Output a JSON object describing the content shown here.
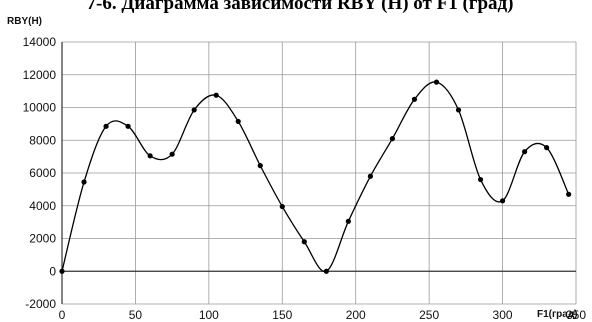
{
  "chart_data": {
    "type": "line",
    "title": "7-6. Диаграмма зависимости RBY (Н) от F1 (град)",
    "ylabel": "RBY(H)",
    "xlabel": "F1(град)",
    "xlim": [
      0,
      350
    ],
    "ylim": [
      -2000,
      14000
    ],
    "x_ticks": [
      0,
      50,
      100,
      150,
      200,
      250,
      300,
      350
    ],
    "y_ticks": [
      -2000,
      0,
      2000,
      4000,
      6000,
      8000,
      10000,
      12000,
      14000
    ],
    "grid": true,
    "legend": "none",
    "series": [
      {
        "color": "#000000",
        "marker": "circle",
        "x": [
          0,
          15,
          30,
          45,
          60,
          75,
          90,
          105,
          120,
          135,
          150,
          165,
          180,
          195,
          210,
          225,
          240,
          255,
          270,
          285,
          300,
          315,
          330,
          345
        ],
        "y": [
          0,
          5450,
          8850,
          8850,
          7050,
          7150,
          9850,
          10750,
          9150,
          6450,
          3950,
          1800,
          0,
          3050,
          5800,
          8100,
          10500,
          11550,
          9850,
          5600,
          4300,
          7300,
          7550,
          4700
        ]
      }
    ]
  }
}
